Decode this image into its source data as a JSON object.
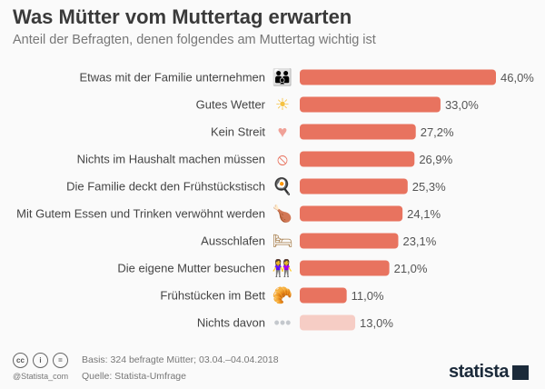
{
  "header": {
    "title": "Was Mütter vom Muttertag erwarten",
    "subtitle": "Anteil der Befragten, denen folgendes am Muttertag wichtig ist"
  },
  "chart_data": {
    "type": "bar",
    "orientation": "horizontal",
    "categories": [
      "Etwas mit der Familie unternehmen",
      "Gutes Wetter",
      "Kein Streit",
      "Nichts im Haushalt machen müssen",
      "Die Familie deckt den Frühstückstisch",
      "Mit Gutem Essen und Trinken verwöhnt werden",
      "Ausschlafen",
      "Die eigene Mutter besuchen",
      "Frühstücken im Bett",
      "Nichts davon"
    ],
    "values": [
      46.0,
      33.0,
      27.2,
      26.9,
      25.3,
      24.1,
      23.1,
      21.0,
      11.0,
      13.0
    ],
    "value_labels": [
      "46,0%",
      "33,0%",
      "27,2%",
      "26,9%",
      "25,3%",
      "24,1%",
      "23,1%",
      "21,0%",
      "11,0%",
      "13,0%"
    ],
    "icons": [
      "family-icon",
      "sun-icon",
      "heart-icon",
      "no-housework-icon",
      "breakfast-icon",
      "food-wine-icon",
      "bed-icon",
      "mother-icon",
      "croissant-icon",
      "dots-icon"
    ],
    "colors": {
      "bar": "#e8735f",
      "bar_muted": "#f6cdc5"
    },
    "xlim": [
      0,
      50
    ],
    "grid": false
  },
  "footer": {
    "basis": "Basis: 324 befragte Mütter; 03.04.–04.04.2018",
    "source": "Quelle: Statista-Umfrage",
    "handle": "@Statista_com",
    "logo": "statista"
  }
}
